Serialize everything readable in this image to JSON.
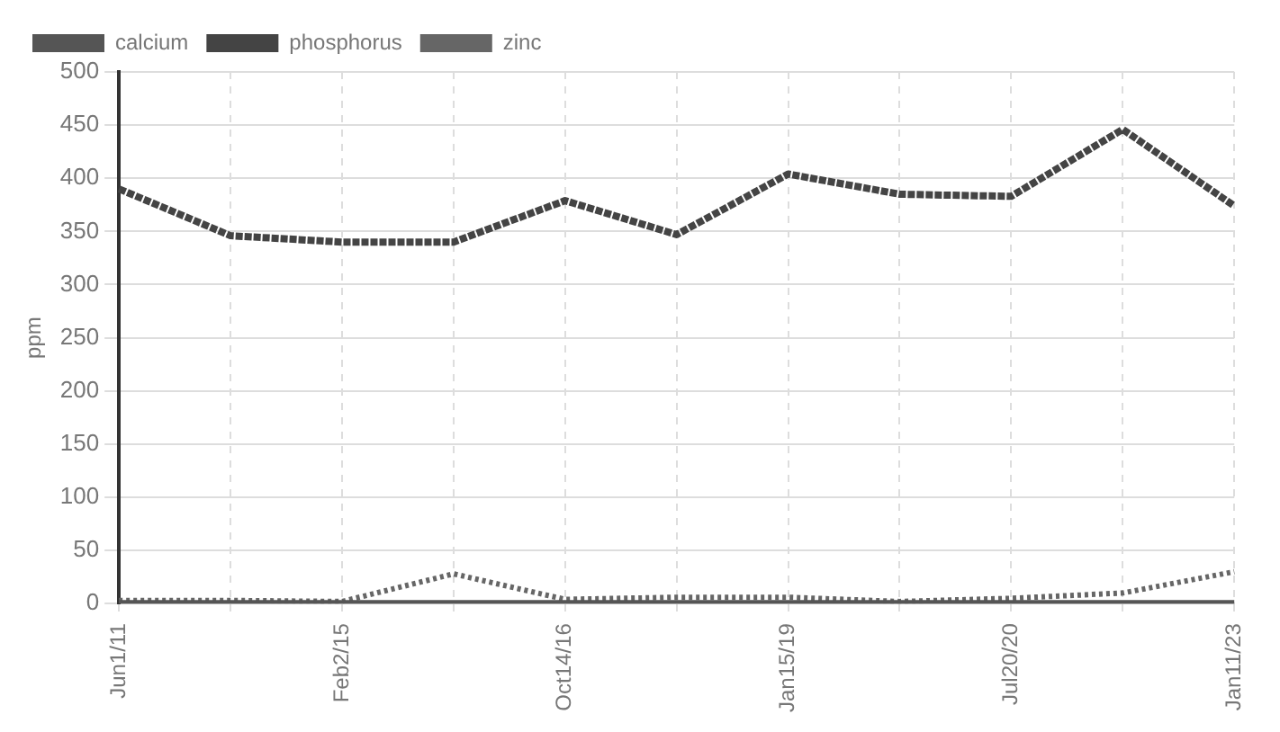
{
  "chart_data": {
    "type": "line",
    "ylabel": "ppm",
    "categories": [
      "Jun1/11",
      null,
      "Feb2/15",
      null,
      "Oct14/16",
      null,
      "Jan15/19",
      null,
      "Jul20/20",
      null,
      "Jan11/23"
    ],
    "series": [
      {
        "name": "calcium",
        "color": "#555555",
        "line_style": "solid",
        "values": [
          0,
          0,
          0,
          0,
          0,
          0,
          0,
          0,
          0,
          0,
          0
        ]
      },
      {
        "name": "phosphorus",
        "color": "#444444",
        "line_style": "dashed",
        "values": [
          390,
          346,
          340,
          340,
          379,
          347,
          404,
          385,
          383,
          446,
          374
        ]
      },
      {
        "name": "zinc",
        "color": "#666666",
        "line_style": "dotted",
        "values": [
          3,
          3,
          2,
          28,
          4,
          6,
          6,
          2,
          5,
          10,
          30
        ]
      }
    ],
    "ylim": [
      0,
      500
    ],
    "yticks": [
      0,
      50,
      100,
      150,
      200,
      250,
      300,
      350,
      400,
      450,
      500
    ],
    "grid": true,
    "legend": "top left",
    "marker": "none"
  }
}
